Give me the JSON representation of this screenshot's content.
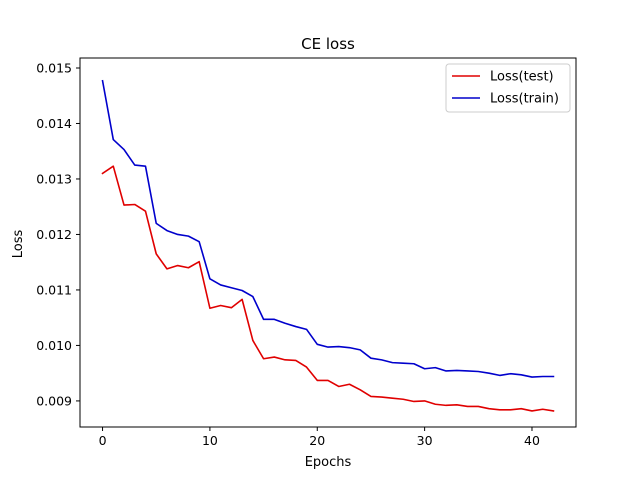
{
  "chart_data": {
    "type": "line",
    "title": "CE loss",
    "xlabel": "Epochs",
    "ylabel": "Loss",
    "xlim": [
      -2.1,
      44.1
    ],
    "ylim": [
      0.00853,
      0.01518
    ],
    "x_ticks": [
      0,
      10,
      20,
      30,
      40
    ],
    "y_ticks": [
      0.009,
      0.01,
      0.011,
      0.012,
      0.013,
      0.014,
      0.015
    ],
    "x_tick_labels": [
      "0",
      "10",
      "20",
      "30",
      "40"
    ],
    "y_tick_labels": [
      "0.009",
      "0.010",
      "0.011",
      "0.012",
      "0.013",
      "0.014",
      "0.015"
    ],
    "grid": false,
    "legend_position": "top-right",
    "x": [
      0,
      1,
      2,
      3,
      4,
      5,
      6,
      7,
      8,
      9,
      10,
      11,
      12,
      13,
      14,
      15,
      16,
      17,
      18,
      19,
      20,
      21,
      22,
      23,
      24,
      25,
      26,
      27,
      28,
      29,
      30,
      31,
      32,
      33,
      34,
      35,
      36,
      37,
      38,
      39,
      40,
      41,
      42
    ],
    "series": [
      {
        "name": "Loss(test)",
        "color": "#e00000",
        "values": [
          0.0131,
          0.01323,
          0.01253,
          0.01254,
          0.01242,
          0.01165,
          0.01138,
          0.01144,
          0.0114,
          0.01151,
          0.01067,
          0.01072,
          0.01068,
          0.01083,
          0.01009,
          0.00976,
          0.00979,
          0.00974,
          0.00973,
          0.00961,
          0.00937,
          0.00937,
          0.00926,
          0.0093,
          0.0092,
          0.00908,
          0.00907,
          0.00905,
          0.00903,
          0.00899,
          0.009,
          0.00894,
          0.00892,
          0.00893,
          0.0089,
          0.0089,
          0.00886,
          0.00884,
          0.00884,
          0.00886,
          0.00882,
          0.00885,
          0.00882
        ]
      },
      {
        "name": "Loss(train)",
        "color": "#0000cc",
        "values": [
          0.01477,
          0.01371,
          0.01353,
          0.01325,
          0.01323,
          0.0122,
          0.01207,
          0.012,
          0.01197,
          0.01187,
          0.0112,
          0.01109,
          0.01104,
          0.01099,
          0.01088,
          0.01047,
          0.01047,
          0.0104,
          0.01034,
          0.01029,
          0.01002,
          0.00997,
          0.00998,
          0.00996,
          0.00992,
          0.00977,
          0.00974,
          0.00969,
          0.00968,
          0.00967,
          0.00958,
          0.0096,
          0.00954,
          0.00955,
          0.00954,
          0.00953,
          0.0095,
          0.00946,
          0.00949,
          0.00947,
          0.00943,
          0.00944,
          0.00944
        ]
      }
    ]
  }
}
